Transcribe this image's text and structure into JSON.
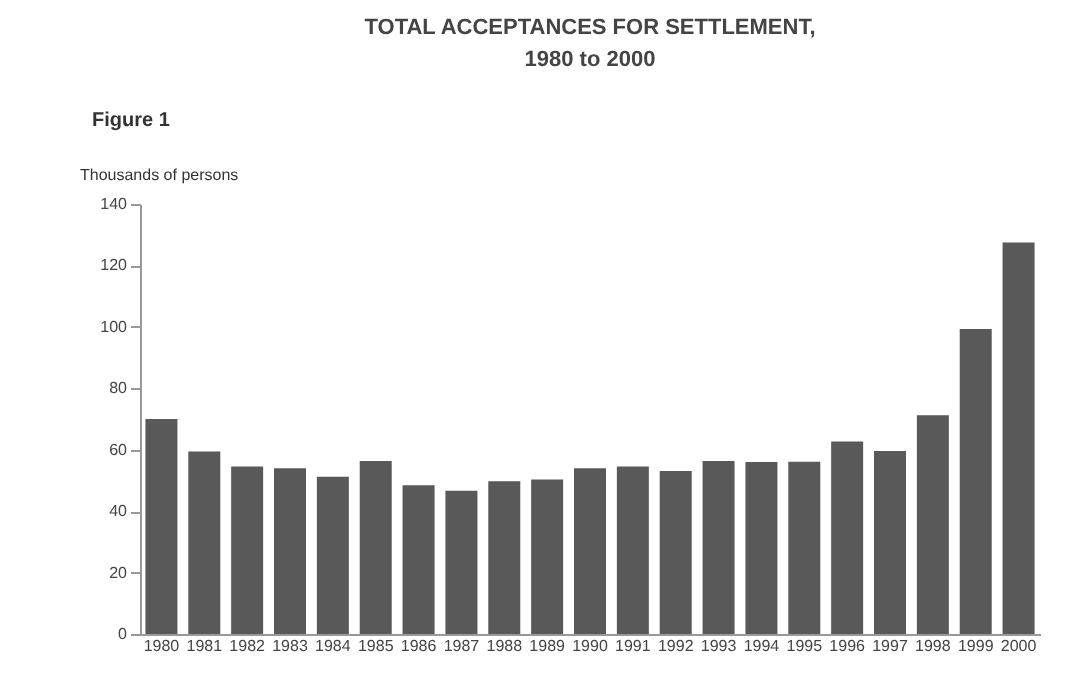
{
  "chart_data": {
    "type": "bar",
    "title": [
      "TOTAL ACCEPTANCES FOR SETTLEMENT,",
      "1980 to 2000"
    ],
    "ylabel": "Thousands of persons",
    "annotations": [
      "Figure 1"
    ],
    "categories": [
      "1980",
      "1981",
      "1982",
      "1983",
      "1984",
      "1985",
      "1986",
      "1987",
      "1988",
      "1989",
      "1990",
      "1991",
      "1992",
      "1993",
      "1994",
      "1995",
      "1996",
      "1997",
      "1998",
      "1999",
      "2000"
    ],
    "values": [
      70,
      59.4,
      54.5,
      54,
      51.2,
      56.3,
      48.4,
      46.6,
      49.7,
      50.3,
      54,
      54.5,
      53.1,
      56.3,
      56,
      56.1,
      62.7,
      59.6,
      71.2,
      99.3,
      127.5
    ],
    "color": "#595959",
    "ylim": [
      0,
      140
    ],
    "yticks": [
      0,
      20,
      40,
      60,
      80,
      100,
      120,
      140
    ],
    "grid": false
  }
}
